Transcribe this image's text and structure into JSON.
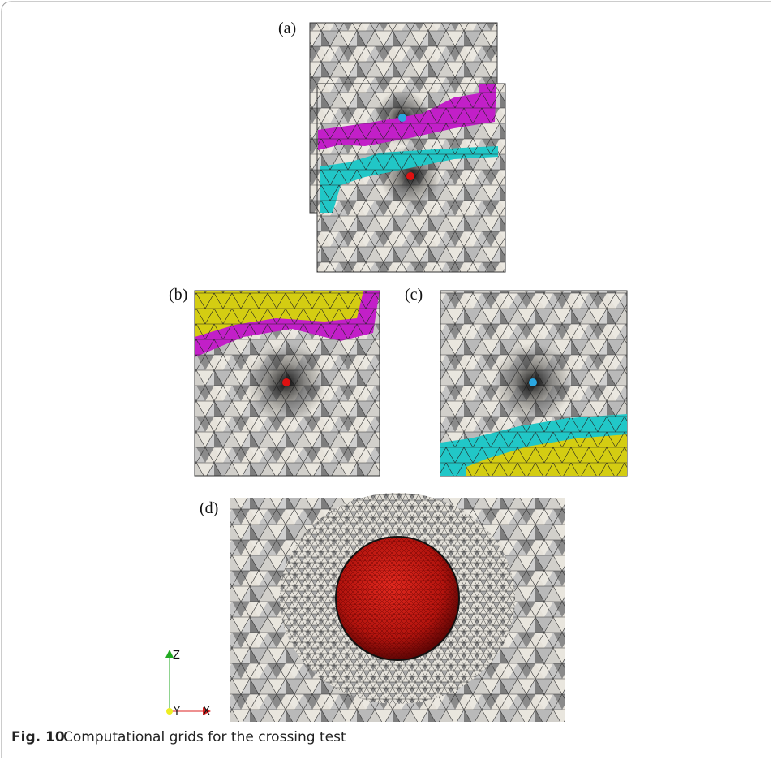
{
  "figure": {
    "panels": [
      {
        "label": "(a)"
      },
      {
        "label": "(b)"
      },
      {
        "label": "(c)"
      },
      {
        "label": "(d)"
      }
    ],
    "axes": {
      "z": "Z",
      "y": "Y",
      "x": "X"
    }
  },
  "caption": {
    "label": "Fig. 10",
    "text": "Computational grids for the crossing test"
  }
}
